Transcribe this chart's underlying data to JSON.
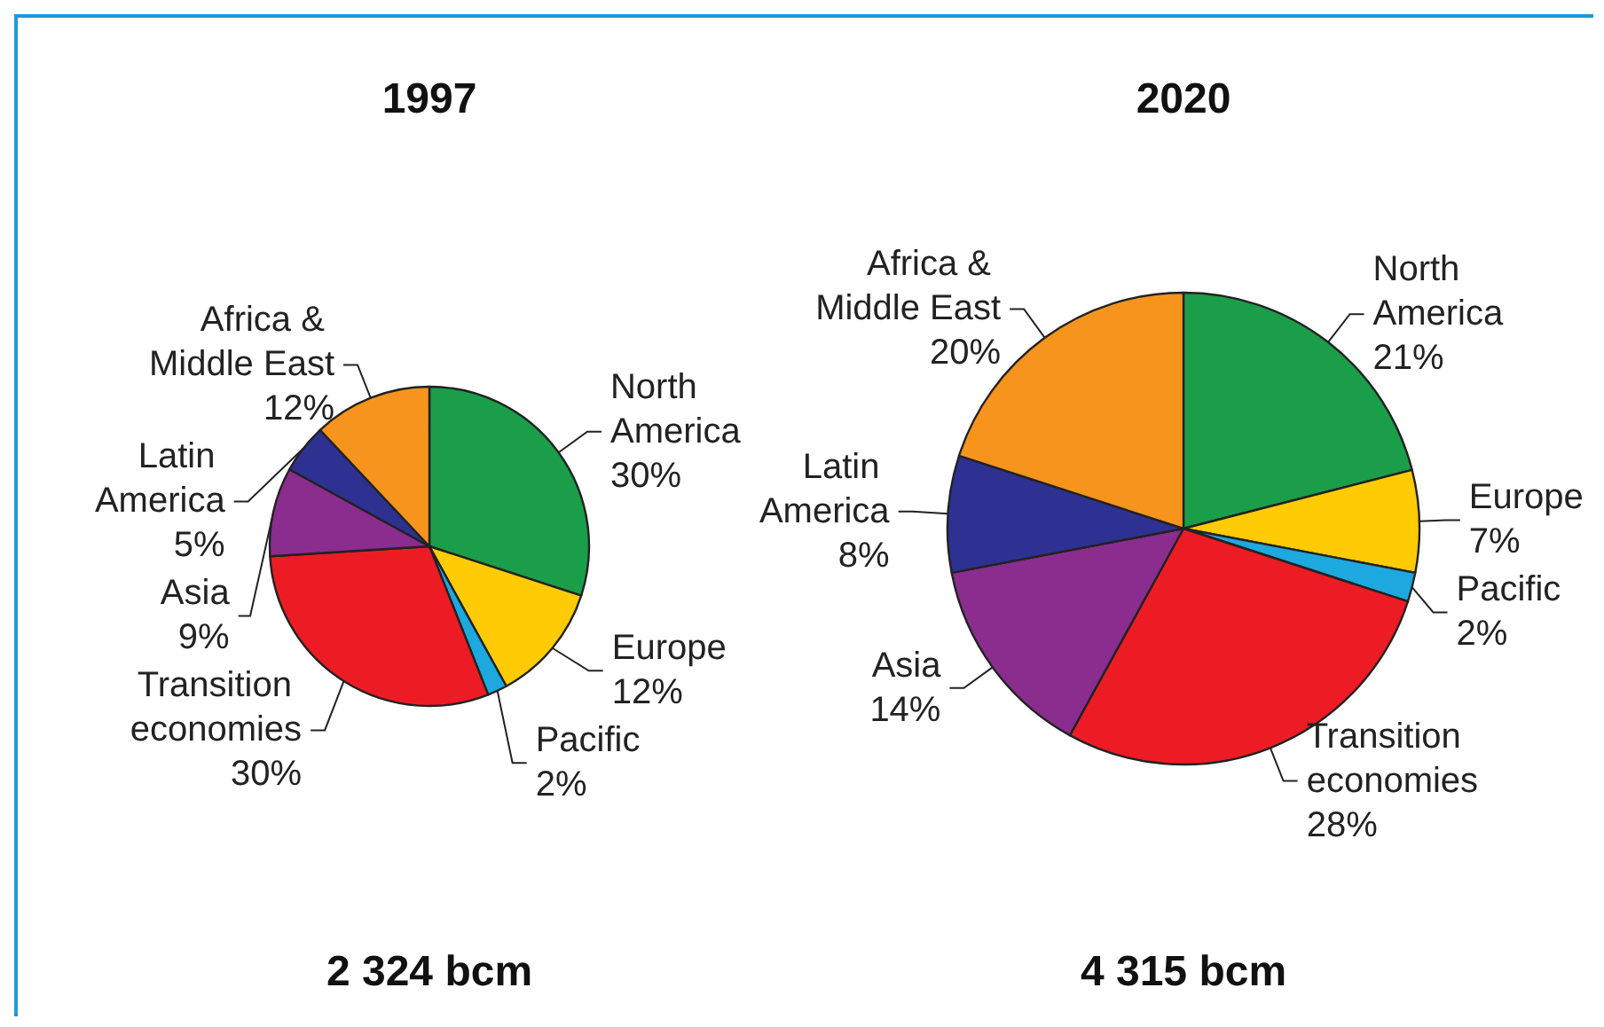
{
  "chart_data": [
    {
      "type": "pie",
      "title": "1997",
      "categories": [
        "North America",
        "Europe",
        "Pacific",
        "Transition economies",
        "Asia",
        "Latin America",
        "Africa & Middle East"
      ],
      "values": [
        30,
        12,
        2,
        30,
        9,
        5,
        12
      ],
      "value_labels": [
        "30%",
        "12%",
        "2%",
        "30%",
        "9%",
        "5%",
        "12%"
      ],
      "colors": [
        "#1a9e4a",
        "#ffcb05",
        "#1ea8e0",
        "#ed1c24",
        "#8b2c8f",
        "#2e3192",
        "#f7941d"
      ],
      "annotations": [
        "2 324 bcm"
      ]
    },
    {
      "type": "pie",
      "title": "2020",
      "categories": [
        "North America",
        "Europe",
        "Pacific",
        "Transition economies",
        "Asia",
        "Latin America",
        "Africa & Middle East"
      ],
      "values": [
        21,
        7,
        2,
        28,
        14,
        8,
        20
      ],
      "value_labels": [
        "21%",
        "7%",
        "2%",
        "28%",
        "14%",
        "8%",
        "20%"
      ],
      "colors": [
        "#1a9e4a",
        "#ffcb05",
        "#1ea8e0",
        "#ed1c24",
        "#8b2c8f",
        "#2e3192",
        "#f7941d"
      ],
      "annotations": [
        "4 315 bcm"
      ]
    }
  ]
}
